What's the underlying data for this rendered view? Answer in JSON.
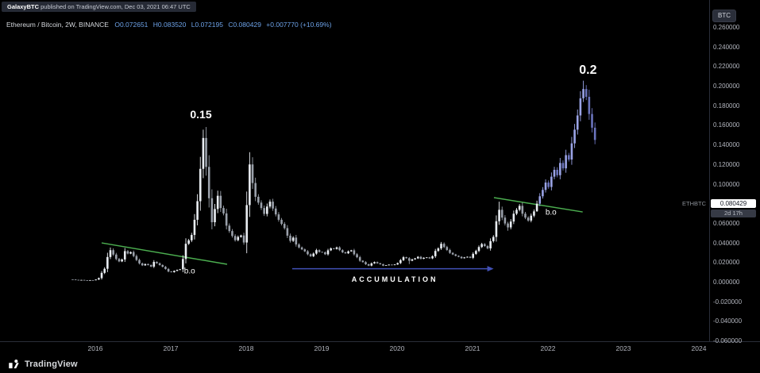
{
  "header": {
    "author": "GalaxyBTC",
    "publish_text": " published on TradingView.com, Dec 03, 2021 06:47 UTC"
  },
  "legend": {
    "title": "Ethereum / Bitcoin, 2W, BINANCE",
    "open": "O0.072651",
    "high": "H0.083520",
    "low": "L0.072195",
    "close": "C0.080429",
    "change": "+0.007770 (+10.69%)"
  },
  "price_scale": {
    "currency_button": "BTC",
    "symbol_tag": "ETHBTC",
    "last_price": "0.080429",
    "countdown": "2d 17h"
  },
  "footer": {
    "brand": "TradingView"
  },
  "chart_data": {
    "type": "candlestick",
    "title": "Ethereum / Bitcoin, 2W, BINANCE",
    "symbol": "ETHBTC",
    "interval": "2W",
    "exchange": "BINANCE",
    "grid": "off",
    "y_axis": {
      "min": -0.06,
      "max": 0.26,
      "tick_values": [
        0.26,
        0.24,
        0.22,
        0.2,
        0.18,
        0.16,
        0.14,
        0.12,
        0.1,
        0.08,
        0.06,
        0.04,
        0.02,
        0.0,
        -0.02,
        -0.04,
        -0.06
      ]
    },
    "x_axis": {
      "start_year": 2015.7,
      "bar_interval_years": 0.03846,
      "tick_years": [
        2016,
        2017,
        2018,
        2019,
        2020,
        2021,
        2022,
        2023,
        2024
      ]
    },
    "closes": [
      0.003,
      0.0027,
      0.0025,
      0.0026,
      0.0023,
      0.0022,
      0.0024,
      0.0023,
      0.003,
      0.0045,
      0.0098,
      0.014,
      0.026,
      0.033,
      0.0285,
      0.024,
      0.0215,
      0.0235,
      0.032,
      0.0295,
      0.031,
      0.027,
      0.023,
      0.0195,
      0.0175,
      0.0188,
      0.0178,
      0.0162,
      0.021,
      0.0196,
      0.0178,
      0.016,
      0.0138,
      0.0112,
      0.0105,
      0.0118,
      0.0128,
      0.0135,
      0.024,
      0.0395,
      0.043,
      0.0485,
      0.064,
      0.083,
      0.116,
      0.1475,
      0.118,
      0.086,
      0.0615,
      0.075,
      0.0885,
      0.076,
      0.0705,
      0.058,
      0.0525,
      0.0475,
      0.0432,
      0.0465,
      0.048,
      0.0408,
      0.079,
      0.1205,
      0.1015,
      0.0875,
      0.0815,
      0.076,
      0.07,
      0.0775,
      0.0825,
      0.0755,
      0.0695,
      0.064,
      0.0598,
      0.0555,
      0.0478,
      0.0425,
      0.0458,
      0.0388,
      0.0358,
      0.0338,
      0.0318,
      0.0288,
      0.0268,
      0.0295,
      0.033,
      0.0312,
      0.0308,
      0.0288,
      0.0328,
      0.0348,
      0.0342,
      0.0358,
      0.033,
      0.0308,
      0.0298,
      0.0318,
      0.0328,
      0.0288,
      0.0258,
      0.0222,
      0.0208,
      0.0186,
      0.0172,
      0.0195,
      0.0208,
      0.0196,
      0.0186,
      0.0172,
      0.0176,
      0.0182,
      0.0178,
      0.0184,
      0.0198,
      0.0228,
      0.0258,
      0.0248,
      0.0222,
      0.0236,
      0.0246,
      0.0262,
      0.0242,
      0.0252,
      0.0256,
      0.0246,
      0.0268,
      0.0322,
      0.0348,
      0.0395,
      0.0362,
      0.0332,
      0.0302,
      0.0286,
      0.0272,
      0.0262,
      0.0248,
      0.0256,
      0.0262,
      0.0252,
      0.0292,
      0.0322,
      0.0362,
      0.0392,
      0.0372,
      0.0348,
      0.0422,
      0.0465,
      0.0625,
      0.0742,
      0.0662,
      0.0602,
      0.0562,
      0.0622,
      0.0702,
      0.0742,
      0.0782,
      0.0702,
      0.0662,
      0.0632,
      0.0682,
      0.0726,
      0.080429
    ],
    "projection_closes": [
      0.088,
      0.0945,
      0.102,
      0.0975,
      0.108,
      0.115,
      0.1095,
      0.122,
      0.1165,
      0.13,
      0.1255,
      0.142,
      0.156,
      0.1705,
      0.188,
      0.1975,
      0.1895,
      0.172,
      0.158,
      0.1455
    ],
    "last_bar": {
      "o": 0.072651,
      "h": 0.08352,
      "l": 0.072195,
      "c": 0.080429
    },
    "wick_high_overrides": {
      "45": 0.156,
      "61": 0.133,
      "147": 0.0825,
      "176": 0.206
    },
    "wick_low_overrides": {
      "116": 0.0188,
      "150": 0.0528
    },
    "colors": {
      "up": "#e9edf2",
      "down": "#9aa0aa",
      "projection_up": "#9aa3e6",
      "projection_down": "#6b74bd",
      "trendline": "#4caf50",
      "arrow": "#4150b5",
      "axis_text": "#b2b5be",
      "legend_values": "#6da2e8"
    },
    "drawings": {
      "lines": [
        {
          "name": "trendline-1",
          "x1_year": 2016.084,
          "v1": 0.0404,
          "x2_year": 2017.747,
          "v2": 0.0186,
          "color": "#4caf50",
          "width": 1.5
        },
        {
          "name": "trendline-2",
          "x1_year": 2021.284,
          "v1": 0.0866,
          "x2_year": 2022.46,
          "v2": 0.072,
          "color": "#4caf50",
          "width": 1.5
        }
      ],
      "arrow": {
        "name": "accumulation-arrow",
        "x1_year": 2018.61,
        "x2_year": 2021.28,
        "v": 0.014,
        "color": "#4150b5",
        "width": 1.5
      },
      "labels": [
        {
          "name": "peak-2017-label",
          "text": "0.15",
          "year": 2017.4,
          "value": 0.172,
          "size": 14,
          "weight": 700,
          "spacing": 0
        },
        {
          "name": "peak-2022-label",
          "text": "0.2",
          "year": 2022.53,
          "value": 0.216,
          "size": 16,
          "weight": 700,
          "spacing": 0
        },
        {
          "name": "breakout-label-1",
          "text": "b.o",
          "year": 2017.25,
          "value": 0.0113,
          "size": 10,
          "weight": 400,
          "spacing": 0
        },
        {
          "name": "breakout-label-2",
          "text": "b.o",
          "year": 2022.04,
          "value": 0.0713,
          "size": 10,
          "weight": 400,
          "spacing": 0
        },
        {
          "name": "accumulation-label",
          "text": "ACCUMULATION",
          "year": 2019.97,
          "value": 0.003,
          "size": 9,
          "weight": 700,
          "spacing": 3
        }
      ]
    }
  }
}
